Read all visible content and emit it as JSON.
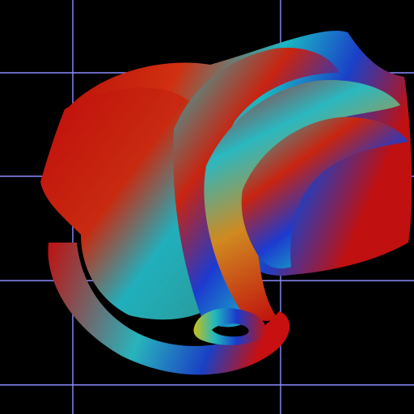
{
  "scene": {
    "background": "#000000",
    "grid_color": "#8c8cff",
    "palette": [
      "#c40a0a",
      "#d06a14",
      "#18c0c8",
      "#1a3dcc",
      "#c8c01a"
    ],
    "object": "twisted-ribbon-surface"
  }
}
